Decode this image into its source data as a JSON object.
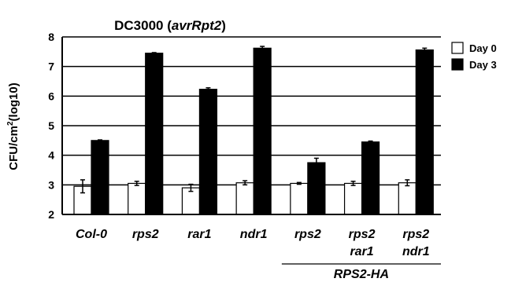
{
  "chart_data": {
    "type": "bar",
    "title_main": "DC3000 (",
    "title_italic": "avrRpt2",
    "title_end": ")",
    "ylabel_main": "CFU/cm",
    "ylabel_sup": "2",
    "ylabel_end": "(log10)",
    "ylim": [
      2,
      8
    ],
    "yticks": [
      "2",
      "3",
      "4",
      "5",
      "6",
      "7",
      "8"
    ],
    "grid": "horizontal",
    "legend_placement": "right",
    "categories": [
      [
        "Col-0"
      ],
      [
        "rps2"
      ],
      [
        "rar1"
      ],
      [
        "ndr1"
      ],
      [
        "rps2"
      ],
      [
        "rps2",
        "rar1"
      ],
      [
        "rps2",
        "ndr1"
      ]
    ],
    "group_label": "RPS2-HA",
    "group_span": [
      4,
      6
    ],
    "series": [
      {
        "name": "Day  0",
        "color": "#ffffff",
        "values": [
          2.95,
          3.05,
          2.9,
          3.07,
          3.05,
          3.05,
          3.07
        ],
        "errors": [
          0.22,
          0.07,
          0.12,
          0.07,
          0.03,
          0.07,
          0.1
        ]
      },
      {
        "name": "Day  3",
        "color": "#000000",
        "values": [
          4.5,
          7.45,
          6.23,
          7.62,
          3.75,
          4.45,
          7.56
        ],
        "errors": [
          0.02,
          0.02,
          0.05,
          0.06,
          0.15,
          0.03,
          0.06
        ]
      }
    ]
  }
}
